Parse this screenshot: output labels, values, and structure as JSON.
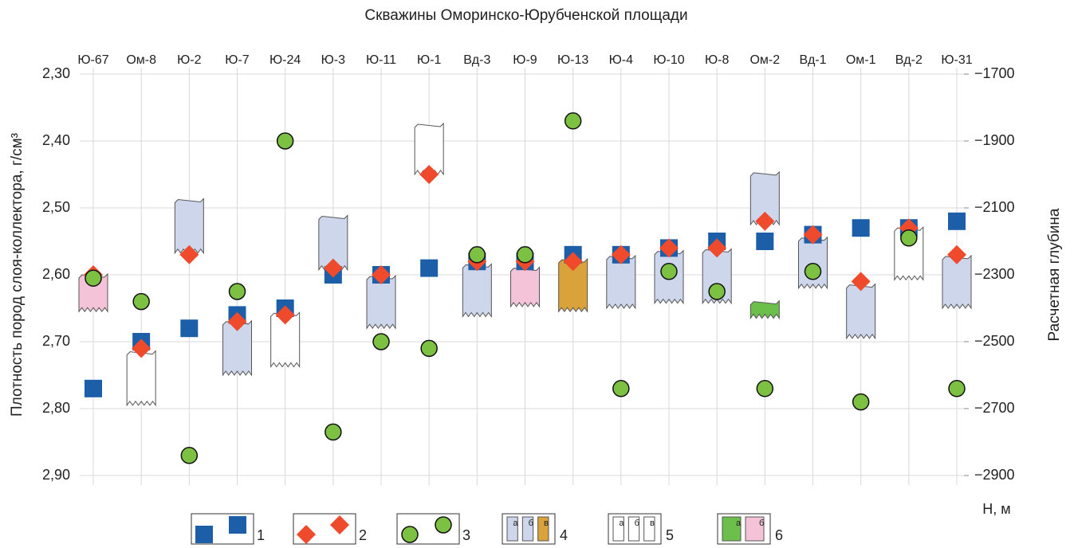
{
  "chart_data": {
    "type": "well-chart",
    "title": "Скважины Оморинско-Юрубченской площади",
    "ylabel": "Плотность пород слоя-коллектора, г/см³",
    "y2label": "Расчетная глубина",
    "y2unit": "Н, м",
    "categories": [
      "Ю-67",
      "Ом-8",
      "Ю-2",
      "Ю-7",
      "Ю-24",
      "Ю-3",
      "Ю-11",
      "Ю-1",
      "Вд-3",
      "Ю-9",
      "Ю-13",
      "Ю-4",
      "Ю-10",
      "Ю-8",
      "Ом-2",
      "Вд-1",
      "Ом-1",
      "Вд-2",
      "Ю-31"
    ],
    "ylim": [
      2.9,
      2.3
    ],
    "yticks": [
      {
        "value": 2.3,
        "label": "2,30"
      },
      {
        "value": 2.4,
        "label": "2,40"
      },
      {
        "value": 2.5,
        "label": "2,50"
      },
      {
        "value": 2.6,
        "label": "2,60"
      },
      {
        "value": 2.7,
        "label": "2,70"
      },
      {
        "value": 2.8,
        "label": "2,80"
      },
      {
        "value": 2.9,
        "label": "2,90"
      }
    ],
    "y2lim": [
      -2900,
      -1700
    ],
    "y2ticks": [
      {
        "value": -1700,
        "label": "−1700"
      },
      {
        "value": -1900,
        "label": "−1900"
      },
      {
        "value": -2100,
        "label": "−2100"
      },
      {
        "value": -2300,
        "label": "−2300"
      },
      {
        "value": -2500,
        "label": "−2500"
      },
      {
        "value": -2700,
        "label": "−2700"
      },
      {
        "value": -2900,
        "label": "−2900"
      }
    ],
    "grid": true,
    "series": [
      {
        "name": "1",
        "marker": "square",
        "color": "#1c5ea8",
        "values": [
          2.77,
          2.7,
          2.68,
          2.66,
          2.65,
          2.6,
          2.6,
          2.59,
          2.58,
          2.58,
          2.57,
          2.57,
          2.56,
          2.55,
          2.55,
          2.54,
          2.53,
          2.53,
          2.52
        ]
      },
      {
        "name": "2",
        "marker": "diamond",
        "color": "#ef4a2b",
        "values": [
          2.6,
          2.71,
          2.57,
          2.67,
          2.66,
          2.59,
          2.6,
          2.45,
          2.58,
          2.58,
          2.58,
          2.57,
          2.56,
          2.56,
          2.52,
          2.54,
          2.61,
          2.53,
          2.57
        ]
      },
      {
        "name": "3",
        "marker": "circle",
        "color": "#7dc142",
        "axis": "y2",
        "values": [
          -2310,
          -2380,
          -2840,
          -2350,
          -1900,
          -2770,
          -2500,
          -2520,
          -2240,
          -2240,
          -1840,
          -2640,
          -2290,
          -2350,
          -2640,
          -2290,
          -2680,
          -2190,
          -2640
        ]
      }
    ],
    "intervals": {
      "top": [
        -2300,
        -2530,
        -2075,
        -2440,
        -2415,
        -2125,
        -2305,
        -1850,
        -2270,
        -2280,
        -2255,
        -2245,
        -2230,
        -2225,
        -1995,
        -2190,
        -2330,
        -2160,
        -2245
      ],
      "bottom": [
        -2410,
        -2690,
        -2235,
        -2600,
        -2575,
        -2285,
        -2460,
        -2000,
        -2425,
        -2395,
        -2410,
        -2400,
        -2385,
        -2385,
        -2150,
        -2340,
        -2490,
        -2315,
        -2400
      ],
      "color": [
        "#f5c3d8",
        "#ffffff",
        "#cdd6ea",
        "#cdd6ea",
        "#ffffff",
        "#cdd6ea",
        "#cdd6ea",
        "#ffffff",
        "#cdd6ea",
        "#f5c3d8",
        "#d9a23a",
        "#cdd6ea",
        "#cdd6ea",
        "#cdd6ea",
        "#cdd6ea",
        "#cdd6ea",
        "#cdd6ea",
        "#ffffff",
        "#cdd6ea"
      ]
    },
    "intervals2": {
      "top": [
        null,
        null,
        null,
        null,
        null,
        null,
        null,
        null,
        null,
        null,
        null,
        null,
        null,
        null,
        -2380,
        null,
        null,
        null,
        null
      ],
      "bottom": [
        null,
        null,
        null,
        null,
        null,
        null,
        null,
        null,
        null,
        null,
        null,
        null,
        null,
        null,
        -2430,
        null,
        null,
        null,
        null
      ],
      "color": [
        null,
        null,
        null,
        null,
        null,
        null,
        null,
        null,
        null,
        null,
        null,
        null,
        null,
        null,
        "#6cbf4a",
        null,
        null,
        null,
        null
      ]
    },
    "lithology_legend": [
      {
        "label": "4",
        "sub": [
          "а",
          "б",
          "в"
        ],
        "colors": [
          "#cdd6ea",
          "#cdd6ea",
          "#d9a23a"
        ]
      },
      {
        "label": "5",
        "sub": [
          "а",
          "б",
          "в"
        ],
        "colors": [
          "#ffffff",
          "#ffffff",
          "#ffffff"
        ]
      },
      {
        "label": "6",
        "sub": [
          "а",
          "б"
        ],
        "colors": [
          "#6cbf4a",
          "#f5c3d8"
        ]
      }
    ]
  }
}
